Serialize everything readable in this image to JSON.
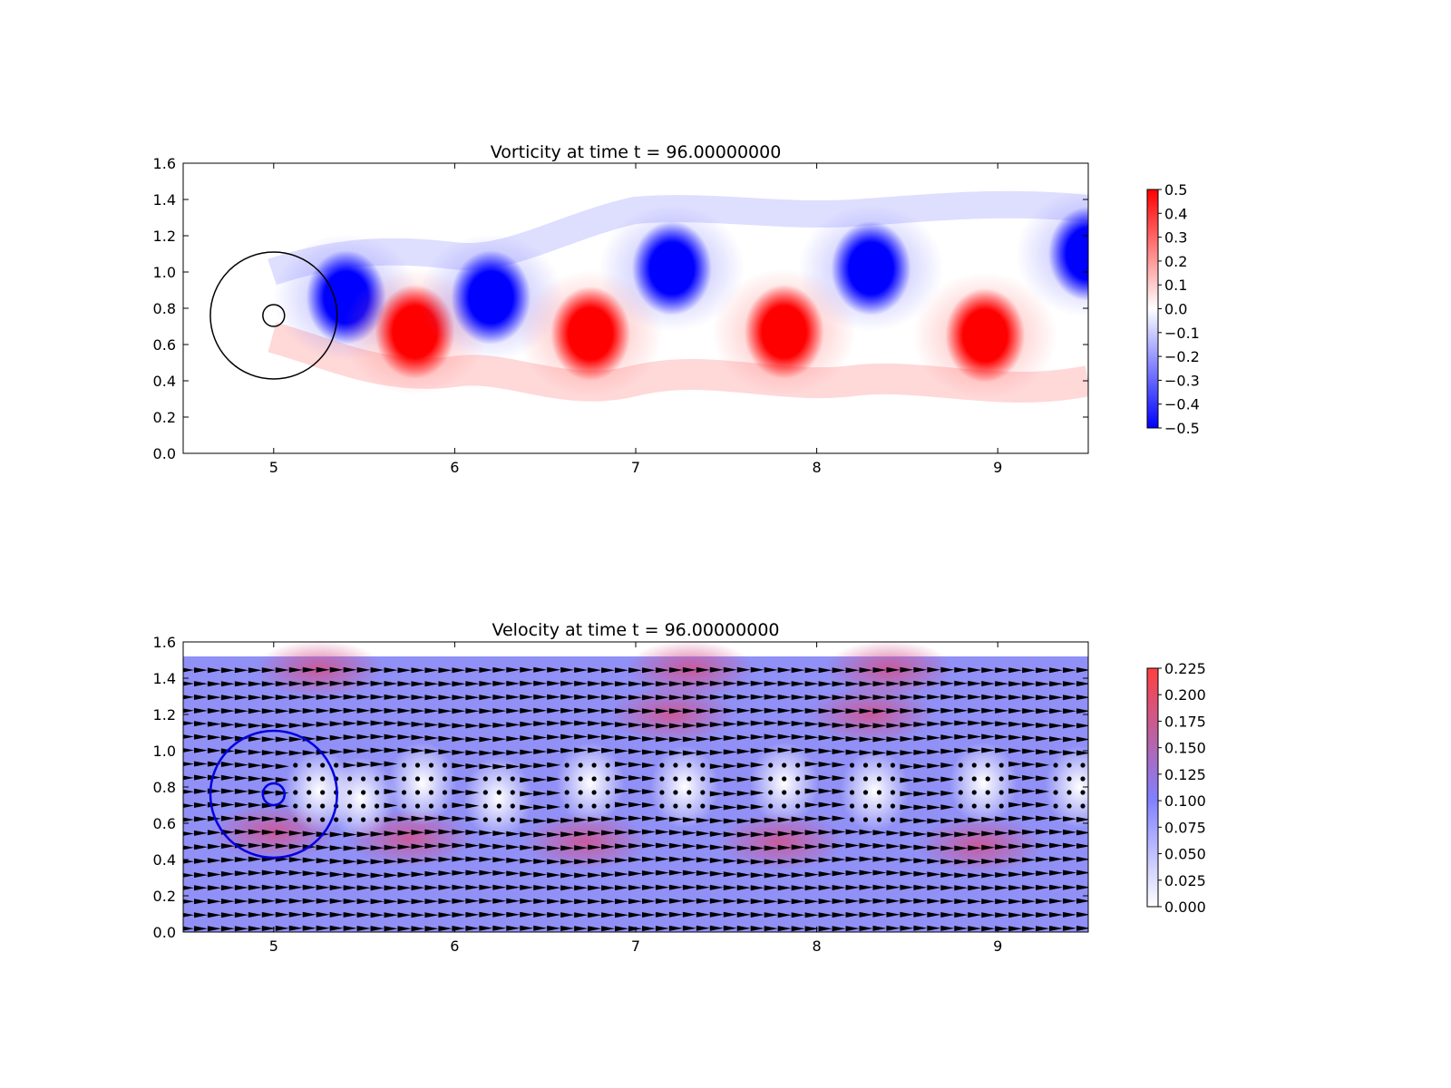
{
  "chart_data": [
    {
      "type": "heatmap",
      "title": "Vorticity at time t =    96.00000000",
      "xlabel": "",
      "ylabel": "",
      "xlim": [
        4.5,
        9.5
      ],
      "ylim": [
        0.0,
        1.6
      ],
      "x_ticks": [
        "5",
        "6",
        "7",
        "8",
        "9"
      ],
      "y_ticks": [
        "0.0",
        "0.2",
        "0.4",
        "0.6",
        "0.8",
        "1.0",
        "1.2",
        "1.4",
        "1.6"
      ],
      "colorbar": {
        "range": [
          -0.5,
          0.5
        ],
        "colors": [
          "#0000ff",
          "#ffffff",
          "#ff0000"
        ],
        "ticks": [
          "−0.5",
          "−0.4",
          "−0.3",
          "−0.2",
          "−0.1",
          "0.0",
          "0.1",
          "0.2",
          "0.3",
          "0.4",
          "0.5"
        ]
      },
      "vortices": [
        {
          "x": 5.4,
          "y": 0.86,
          "value": -0.5
        },
        {
          "x": 5.78,
          "y": 0.67,
          "value": 0.5
        },
        {
          "x": 6.2,
          "y": 0.86,
          "value": -0.5
        },
        {
          "x": 6.75,
          "y": 0.66,
          "value": 0.5
        },
        {
          "x": 7.2,
          "y": 1.02,
          "value": -0.5
        },
        {
          "x": 7.82,
          "y": 0.67,
          "value": 0.5
        },
        {
          "x": 8.3,
          "y": 1.02,
          "value": -0.5
        },
        {
          "x": 8.93,
          "y": 0.65,
          "value": 0.5
        },
        {
          "x": 9.5,
          "y": 1.1,
          "value": -0.5
        }
      ],
      "circles": [
        {
          "cx": 5.0,
          "cy": 0.76,
          "r": 0.35,
          "color": "#000000"
        },
        {
          "cx": 5.0,
          "cy": 0.76,
          "r": 0.06,
          "color": "#000000"
        }
      ]
    },
    {
      "type": "heatmap",
      "title": "Velocity at time t =    96.00000000",
      "xlabel": "",
      "ylabel": "",
      "xlim": [
        4.5,
        9.5
      ],
      "ylim": [
        0.0,
        1.6
      ],
      "x_ticks": [
        "5",
        "6",
        "7",
        "8",
        "9"
      ],
      "y_ticks": [
        "0.0",
        "0.2",
        "0.4",
        "0.6",
        "0.8",
        "1.0",
        "1.2",
        "1.4",
        "1.6"
      ],
      "field_top": 1.52,
      "colorbar": {
        "range": [
          0.0,
          0.225
        ],
        "colors": [
          "#ffffff",
          "#8080ff",
          "#ff4040"
        ],
        "ticks": [
          "0.000",
          "0.025",
          "0.050",
          "0.075",
          "0.100",
          "0.125",
          "0.150",
          "0.175",
          "0.200",
          "0.225"
        ]
      },
      "calm_regions": [
        {
          "x": 5.25,
          "y": 0.78
        },
        {
          "x": 5.48,
          "y": 0.74
        },
        {
          "x": 5.82,
          "y": 0.82
        },
        {
          "x": 6.24,
          "y": 0.74
        },
        {
          "x": 6.75,
          "y": 0.82
        },
        {
          "x": 7.27,
          "y": 0.8
        },
        {
          "x": 7.82,
          "y": 0.82
        },
        {
          "x": 8.32,
          "y": 0.78
        },
        {
          "x": 8.92,
          "y": 0.82
        },
        {
          "x": 9.45,
          "y": 0.8
        }
      ],
      "fast_regions": [
        {
          "x": 5.0,
          "y": 0.55
        },
        {
          "x": 5.75,
          "y": 0.52
        },
        {
          "x": 6.72,
          "y": 0.5
        },
        {
          "x": 7.8,
          "y": 0.5
        },
        {
          "x": 8.9,
          "y": 0.48
        },
        {
          "x": 7.2,
          "y": 1.2
        },
        {
          "x": 8.3,
          "y": 1.2
        },
        {
          "x": 5.25,
          "y": 1.45
        },
        {
          "x": 7.3,
          "y": 1.45
        },
        {
          "x": 8.4,
          "y": 1.45
        }
      ],
      "circles": [
        {
          "cx": 5.0,
          "cy": 0.76,
          "r": 0.35,
          "color": "#0000dd"
        },
        {
          "cx": 5.0,
          "cy": 0.76,
          "r": 0.06,
          "color": "#0000dd"
        }
      ]
    }
  ]
}
